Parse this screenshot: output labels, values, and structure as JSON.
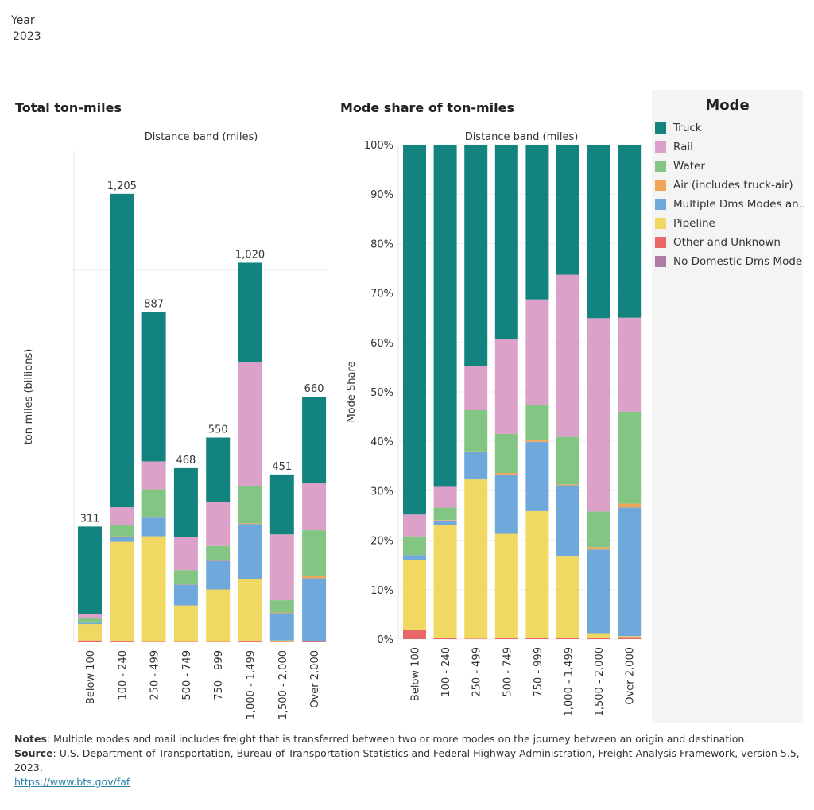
{
  "filter": {
    "label": "Year",
    "value": "2023"
  },
  "legend": {
    "title": "Mode",
    "items": [
      {
        "name": "Truck",
        "color": "#138380"
      },
      {
        "name": "Rail",
        "color": "#dca1c9"
      },
      {
        "name": "Water",
        "color": "#83c683"
      },
      {
        "name": "Air (includes truck-air)",
        "color": "#f0a65a"
      },
      {
        "name": "Multiple Dms Modes an..",
        "color": "#6fa9dc"
      },
      {
        "name": "Pipeline",
        "color": "#f1d862"
      },
      {
        "name": "Other and Unknown",
        "color": "#e8686a"
      },
      {
        "name": "No Domestic Dms Mode",
        "color": "#b07aa7"
      }
    ]
  },
  "chart_data": [
    {
      "type": "bar",
      "stacked": true,
      "title": "Total ton-miles",
      "xlabel": "Distance band (miles)",
      "ylabel": "ton-miles (billions)",
      "ylim": [
        0,
        1320
      ],
      "gridlines": [
        1000
      ],
      "categories": [
        "Below 100",
        "100 - 240",
        "250 - 499",
        "500 - 749",
        "750 - 999",
        "1,000 - 1,499",
        "1,500 - 2,000",
        "Over 2,000"
      ],
      "totals": [
        "311",
        "1,205",
        "887",
        "468",
        "550",
        "1,020",
        "451",
        "660"
      ],
      "series": [
        {
          "name": "Other and Unknown",
          "values": [
            5,
            2,
            1,
            1,
            1,
            2,
            1,
            2
          ]
        },
        {
          "name": "Pipeline",
          "values": [
            44,
            268,
            284,
            98,
            141,
            168,
            4,
            0
          ]
        },
        {
          "name": "Multiple Dms Modes an..",
          "values": [
            3,
            14,
            50,
            56,
            77,
            148,
            73,
            170
          ]
        },
        {
          "name": "Air (includes truck-air)",
          "values": [
            0,
            1,
            1,
            1,
            2,
            2,
            2,
            6
          ]
        },
        {
          "name": "Water",
          "values": [
            12,
            30,
            75,
            38,
            38,
            99,
            33,
            123
          ]
        },
        {
          "name": "Rail",
          "values": [
            11,
            48,
            75,
            88,
            117,
            333,
            177,
            126
          ]
        },
        {
          "name": "Truck",
          "values": [
            236,
            842,
            401,
            186,
            174,
            268,
            161,
            233
          ]
        }
      ]
    },
    {
      "type": "bar",
      "stacked": true,
      "title": "Mode share of ton-miles",
      "xlabel": "Distance band (miles)",
      "ylabel": "Mode Share",
      "ylim": [
        0,
        100
      ],
      "ytick_labels": [
        "0%",
        "10%",
        "20%",
        "30%",
        "40%",
        "50%",
        "60%",
        "70%",
        "80%",
        "90%",
        "100%"
      ],
      "categories": [
        "Below 100",
        "100 - 240",
        "250 - 499",
        "500 - 749",
        "750 - 999",
        "1,000 - 1,499",
        "1,500 - 2,000",
        "Over 2,000"
      ],
      "series": [
        {
          "name": "Other and Unknown",
          "values": [
            1.8,
            0.2,
            0.1,
            0.2,
            0.2,
            0.2,
            0.2,
            0.4
          ]
        },
        {
          "name": "Pipeline",
          "values": [
            14.2,
            22.8,
            32.2,
            21.1,
            25.7,
            16.5,
            1.0,
            0.2
          ]
        },
        {
          "name": "Multiple Dms Modes an..",
          "values": [
            1.0,
            1.0,
            5.6,
            12.0,
            14.0,
            14.4,
            16.9,
            26.0
          ]
        },
        {
          "name": "Air (includes truck-air)",
          "values": [
            0.0,
            0.1,
            0.1,
            0.3,
            0.4,
            0.2,
            0.5,
            0.8
          ]
        },
        {
          "name": "Water",
          "values": [
            3.8,
            2.5,
            8.3,
            7.9,
            7.1,
            9.6,
            7.2,
            18.6
          ]
        },
        {
          "name": "Rail",
          "values": [
            4.4,
            4.2,
            8.9,
            19.1,
            21.3,
            32.8,
            39.1,
            19.0
          ]
        },
        {
          "name": "Truck",
          "values": [
            74.8,
            69.2,
            44.8,
            39.4,
            31.3,
            26.3,
            35.1,
            35.0
          ]
        }
      ]
    }
  ],
  "notes": {
    "notes_label": "Notes",
    "notes_text": ": Multiple modes and mail includes freight that is transferred between two or more modes on the journey between an origin and destination.",
    "source_label": "Source",
    "source_text": ": U.S. Department of Transportation, Bureau of Transportation Statistics and Federal Highway Administration, Freight Analysis Framework, version 5.5, 2023,",
    "link": "https://www.bts.gov/faf"
  }
}
